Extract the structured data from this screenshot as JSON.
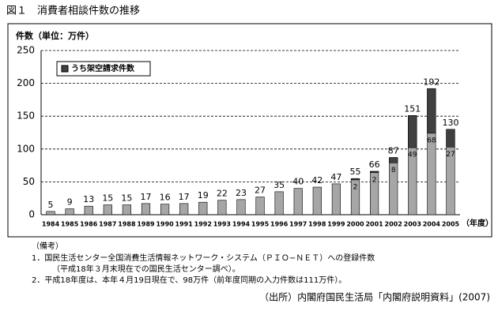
{
  "chart_data": {
    "type": "bar",
    "title": "図１　消費者相談件数の推移",
    "y_label": "件数（単位：万件）",
    "x_label": "（年度）",
    "categories": [
      "1984",
      "1985",
      "1986",
      "1987",
      "1988",
      "1989",
      "1990",
      "1991",
      "1992",
      "1993",
      "1994",
      "1995",
      "1996",
      "1997",
      "1998",
      "1999",
      "2000",
      "2001",
      "2002",
      "2003",
      "2004",
      "2005"
    ],
    "series": [
      {
        "color": "#a6a6a6",
        "values": [
          5,
          9,
          13,
          15,
          15,
          17,
          16,
          17,
          19,
          22,
          23,
          27,
          35,
          40,
          42,
          47,
          55,
          66,
          87,
          151,
          192,
          130
        ]
      },
      {
        "name": "うち架空請求件数",
        "color": "#404040",
        "values": [
          null,
          null,
          null,
          null,
          null,
          null,
          null,
          null,
          null,
          null,
          null,
          null,
          null,
          null,
          null,
          null,
          2,
          2,
          8,
          49,
          68,
          27
        ]
      }
    ],
    "ylim": [
      0,
      250
    ],
    "yticks": [
      0,
      50,
      100,
      150,
      200,
      250
    ],
    "grid": true
  },
  "notes": {
    "heading": "（備考）",
    "items": [
      "1．国民生活センター全国消費生活情報ネットワーク・システム（ＰＩＯ−ＮＥＴ）への登録件数",
      "（平成18年３月末現在での国民生活センター調べ）。",
      "2．平成18年度は、本年４月19日現在で、98万件（前年度同期の入力件数は111万件）。"
    ],
    "source": "（出所）内閣府国民生活局「内閣府説明資料」(2007)"
  }
}
